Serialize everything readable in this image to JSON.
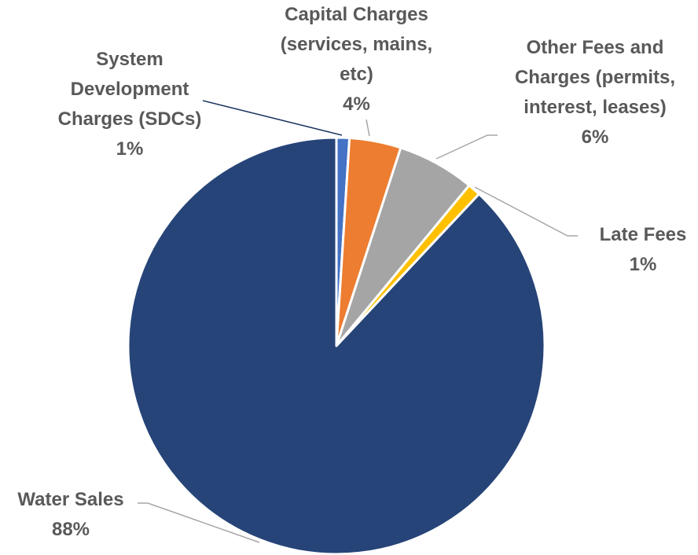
{
  "chart_data": {
    "type": "pie",
    "categories": [
      "System Development Charges (SDCs)",
      "Capital Charges (services, mains, etc)",
      "Other Fees and Charges (permits, interest, leases)",
      "Late Fees",
      "Water Sales"
    ],
    "values": [
      1,
      4,
      6,
      1,
      88
    ],
    "value_labels": [
      "1%",
      "4%",
      "6%",
      "1%",
      "88%"
    ],
    "colors": [
      "#4472c4",
      "#ed7d31",
      "#a5a5a5",
      "#ffc000",
      "#264478"
    ]
  }
}
